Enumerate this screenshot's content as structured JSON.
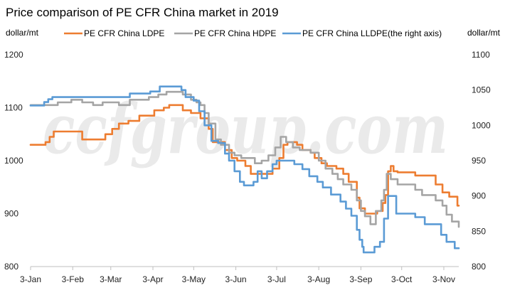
{
  "chart_data": {
    "type": "line",
    "title": "Price comparison of PE CFR China market in 2019",
    "ylabel_left": "dollar/mt",
    "ylabel_right": "dollar/mt",
    "watermark": "ccfgroup.com",
    "x_start_day": 0,
    "x_end_day": 315,
    "x_ticks": [
      {
        "label": "3-Jan",
        "day": 0
      },
      {
        "label": "3-Feb",
        "day": 31
      },
      {
        "label": "3-Mar",
        "day": 59
      },
      {
        "label": "3-Apr",
        "day": 90
      },
      {
        "label": "3-May",
        "day": 120
      },
      {
        "label": "3-Jun",
        "day": 151
      },
      {
        "label": "3-Jul",
        "day": 181
      },
      {
        "label": "3-Aug",
        "day": 212
      },
      {
        "label": "3-Sep",
        "day": 243
      },
      {
        "label": "3-Oct",
        "day": 273
      },
      {
        "label": "3-Nov",
        "day": 304
      }
    ],
    "y_left": {
      "min": 800,
      "max": 1200,
      "ticks": [
        800,
        900,
        1000,
        1100,
        1200
      ]
    },
    "y_right": {
      "min": 800,
      "max": 1100,
      "ticks": [
        800,
        850,
        900,
        950,
        1000,
        1050,
        1100
      ]
    },
    "colors": {
      "ldpe": "#ED7D31",
      "hdpe": "#A5A5A5",
      "lldpe": "#5B9BD5"
    },
    "series": [
      {
        "key": "ldpe",
        "name": "PE CFR China LDPE",
        "axis": "left",
        "color": "#ED7D31",
        "points": [
          [
            0,
            1030
          ],
          [
            11,
            1030
          ],
          [
            11,
            1035
          ],
          [
            14,
            1035
          ],
          [
            14,
            1045
          ],
          [
            17,
            1045
          ],
          [
            17,
            1055
          ],
          [
            38,
            1055
          ],
          [
            38,
            1040
          ],
          [
            55,
            1040
          ],
          [
            55,
            1050
          ],
          [
            60,
            1050
          ],
          [
            60,
            1060
          ],
          [
            65,
            1060
          ],
          [
            65,
            1070
          ],
          [
            72,
            1070
          ],
          [
            72,
            1075
          ],
          [
            80,
            1075
          ],
          [
            80,
            1085
          ],
          [
            91,
            1085
          ],
          [
            91,
            1095
          ],
          [
            98,
            1095
          ],
          [
            98,
            1100
          ],
          [
            102,
            1100
          ],
          [
            102,
            1105
          ],
          [
            112,
            1105
          ],
          [
            112,
            1095
          ],
          [
            118,
            1095
          ],
          [
            118,
            1090
          ],
          [
            125,
            1090
          ],
          [
            125,
            1080
          ],
          [
            131,
            1080
          ],
          [
            131,
            1060
          ],
          [
            134,
            1060
          ],
          [
            134,
            1035
          ],
          [
            143,
            1035
          ],
          [
            143,
            1020
          ],
          [
            148,
            1020
          ],
          [
            148,
            1005
          ],
          [
            152,
            1005
          ],
          [
            152,
            1000
          ],
          [
            158,
            1000
          ],
          [
            158,
            990
          ],
          [
            162,
            990
          ],
          [
            162,
            975
          ],
          [
            178,
            975
          ],
          [
            178,
            985
          ],
          [
            183,
            985
          ],
          [
            183,
            1005
          ],
          [
            186,
            1005
          ],
          [
            186,
            1030
          ],
          [
            189,
            1030
          ],
          [
            189,
            1035
          ],
          [
            196,
            1035
          ],
          [
            196,
            1030
          ],
          [
            200,
            1030
          ],
          [
            200,
            1020
          ],
          [
            206,
            1020
          ],
          [
            206,
            1015
          ],
          [
            209,
            1015
          ],
          [
            209,
            1005
          ],
          [
            214,
            1005
          ],
          [
            214,
            995
          ],
          [
            218,
            995
          ],
          [
            218,
            990
          ],
          [
            225,
            990
          ],
          [
            225,
            985
          ],
          [
            230,
            985
          ],
          [
            230,
            975
          ],
          [
            234,
            975
          ],
          [
            234,
            960
          ],
          [
            240,
            960
          ],
          [
            240,
            930
          ],
          [
            242,
            930
          ],
          [
            242,
            910
          ],
          [
            246,
            910
          ],
          [
            246,
            900
          ],
          [
            255,
            900
          ],
          [
            255,
            905
          ],
          [
            259,
            905
          ],
          [
            259,
            920
          ],
          [
            261,
            920
          ],
          [
            261,
            935
          ],
          [
            263,
            935
          ],
          [
            263,
            980
          ],
          [
            265,
            980
          ],
          [
            265,
            990
          ],
          [
            267,
            990
          ],
          [
            267,
            980
          ],
          [
            270,
            980
          ],
          [
            270,
            978
          ],
          [
            283,
            978
          ],
          [
            283,
            972
          ],
          [
            298,
            972
          ],
          [
            298,
            955
          ],
          [
            303,
            955
          ],
          [
            303,
            940
          ],
          [
            308,
            940
          ],
          [
            308,
            932
          ],
          [
            314,
            932
          ],
          [
            314,
            915
          ],
          [
            330,
            915
          ]
        ]
      },
      {
        "key": "hdpe",
        "name": "PE CFR China HDPE",
        "axis": "left",
        "color": "#A5A5A5",
        "points": [
          [
            0,
            1105
          ],
          [
            20,
            1105
          ],
          [
            20,
            1110
          ],
          [
            30,
            1110
          ],
          [
            30,
            1115
          ],
          [
            38,
            1115
          ],
          [
            38,
            1110
          ],
          [
            46,
            1110
          ],
          [
            46,
            1105
          ],
          [
            53,
            1105
          ],
          [
            53,
            1110
          ],
          [
            65,
            1110
          ],
          [
            65,
            1105
          ],
          [
            73,
            1105
          ],
          [
            73,
            1115
          ],
          [
            87,
            1115
          ],
          [
            87,
            1120
          ],
          [
            94,
            1120
          ],
          [
            94,
            1125
          ],
          [
            100,
            1125
          ],
          [
            100,
            1130
          ],
          [
            112,
            1130
          ],
          [
            112,
            1125
          ],
          [
            118,
            1125
          ],
          [
            118,
            1115
          ],
          [
            122,
            1115
          ],
          [
            122,
            1110
          ],
          [
            125,
            1110
          ],
          [
            125,
            1105
          ],
          [
            128,
            1105
          ],
          [
            128,
            1090
          ],
          [
            131,
            1090
          ],
          [
            131,
            1070
          ],
          [
            136,
            1070
          ],
          [
            136,
            1040
          ],
          [
            140,
            1040
          ],
          [
            140,
            1030
          ],
          [
            146,
            1030
          ],
          [
            146,
            1015
          ],
          [
            150,
            1015
          ],
          [
            150,
            1010
          ],
          [
            155,
            1010
          ],
          [
            155,
            1005
          ],
          [
            165,
            1005
          ],
          [
            165,
            995
          ],
          [
            170,
            995
          ],
          [
            170,
            1000
          ],
          [
            175,
            1000
          ],
          [
            175,
            1010
          ],
          [
            180,
            1010
          ],
          [
            180,
            1025
          ],
          [
            184,
            1025
          ],
          [
            184,
            1045
          ],
          [
            188,
            1045
          ],
          [
            188,
            1035
          ],
          [
            193,
            1035
          ],
          [
            193,
            1025
          ],
          [
            198,
            1025
          ],
          [
            198,
            1020
          ],
          [
            206,
            1020
          ],
          [
            206,
            1015
          ],
          [
            212,
            1015
          ],
          [
            212,
            1000
          ],
          [
            217,
            1000
          ],
          [
            217,
            985
          ],
          [
            222,
            985
          ],
          [
            222,
            975
          ],
          [
            226,
            975
          ],
          [
            226,
            965
          ],
          [
            230,
            965
          ],
          [
            230,
            955
          ],
          [
            236,
            955
          ],
          [
            236,
            945
          ],
          [
            240,
            945
          ],
          [
            240,
            925
          ],
          [
            243,
            925
          ],
          [
            243,
            905
          ],
          [
            246,
            905
          ],
          [
            246,
            895
          ],
          [
            250,
            895
          ],
          [
            250,
            880
          ],
          [
            254,
            880
          ],
          [
            254,
            905
          ],
          [
            258,
            905
          ],
          [
            258,
            925
          ],
          [
            260,
            925
          ],
          [
            260,
            945
          ],
          [
            262,
            945
          ],
          [
            262,
            975
          ],
          [
            265,
            975
          ],
          [
            265,
            965
          ],
          [
            270,
            965
          ],
          [
            270,
            955
          ],
          [
            283,
            955
          ],
          [
            283,
            945
          ],
          [
            288,
            945
          ],
          [
            288,
            935
          ],
          [
            298,
            935
          ],
          [
            298,
            925
          ],
          [
            303,
            925
          ],
          [
            303,
            915
          ],
          [
            306,
            915
          ],
          [
            306,
            898
          ],
          [
            310,
            898
          ],
          [
            310,
            885
          ],
          [
            320,
            885
          ],
          [
            320,
            875
          ],
          [
            330,
            875
          ]
        ]
      },
      {
        "key": "lldpe",
        "name": "PE CFR China LLDPE(the right axis)",
        "axis": "right",
        "color": "#5B9BD5",
        "points": [
          [
            0,
            1028
          ],
          [
            10,
            1028
          ],
          [
            10,
            1033
          ],
          [
            13,
            1033
          ],
          [
            13,
            1037
          ],
          [
            16,
            1037
          ],
          [
            16,
            1040
          ],
          [
            73,
            1040
          ],
          [
            73,
            1045
          ],
          [
            88,
            1045
          ],
          [
            88,
            1048
          ],
          [
            95,
            1048
          ],
          [
            95,
            1055
          ],
          [
            111,
            1055
          ],
          [
            111,
            1050
          ],
          [
            114,
            1050
          ],
          [
            114,
            1040
          ],
          [
            120,
            1040
          ],
          [
            120,
            1035
          ],
          [
            124,
            1035
          ],
          [
            124,
            1020
          ],
          [
            128,
            1020
          ],
          [
            128,
            1000
          ],
          [
            133,
            1000
          ],
          [
            133,
            978
          ],
          [
            138,
            978
          ],
          [
            138,
            975
          ],
          [
            143,
            975
          ],
          [
            143,
            960
          ],
          [
            146,
            960
          ],
          [
            146,
            950
          ],
          [
            150,
            950
          ],
          [
            150,
            935
          ],
          [
            154,
            935
          ],
          [
            154,
            920
          ],
          [
            157,
            920
          ],
          [
            157,
            915
          ],
          [
            164,
            915
          ],
          [
            164,
            920
          ],
          [
            167,
            920
          ],
          [
            167,
            935
          ],
          [
            170,
            935
          ],
          [
            170,
            925
          ],
          [
            174,
            925
          ],
          [
            174,
            935
          ],
          [
            178,
            935
          ],
          [
            178,
            945
          ],
          [
            181,
            945
          ],
          [
            181,
            950
          ],
          [
            194,
            950
          ],
          [
            194,
            945
          ],
          [
            200,
            945
          ],
          [
            200,
            938
          ],
          [
            205,
            938
          ],
          [
            205,
            928
          ],
          [
            211,
            928
          ],
          [
            211,
            920
          ],
          [
            215,
            920
          ],
          [
            215,
            912
          ],
          [
            221,
            912
          ],
          [
            221,
            902
          ],
          [
            228,
            902
          ],
          [
            228,
            892
          ],
          [
            232,
            892
          ],
          [
            232,
            882
          ],
          [
            236,
            882
          ],
          [
            236,
            872
          ],
          [
            240,
            872
          ],
          [
            240,
            852
          ],
          [
            242,
            852
          ],
          [
            242,
            838
          ],
          [
            244,
            838
          ],
          [
            244,
            828
          ],
          [
            245,
            828
          ],
          [
            245,
            820
          ],
          [
            253,
            820
          ],
          [
            253,
            828
          ],
          [
            257,
            828
          ],
          [
            257,
            835
          ],
          [
            260,
            835
          ],
          [
            260,
            868
          ],
          [
            263,
            868
          ],
          [
            263,
            900
          ],
          [
            269,
            900
          ],
          [
            269,
            875
          ],
          [
            283,
            875
          ],
          [
            283,
            870
          ],
          [
            290,
            870
          ],
          [
            290,
            860
          ],
          [
            302,
            860
          ],
          [
            302,
            845
          ],
          [
            306,
            845
          ],
          [
            306,
            835
          ],
          [
            312,
            835
          ],
          [
            312,
            826
          ],
          [
            330,
            826
          ]
        ]
      }
    ]
  }
}
